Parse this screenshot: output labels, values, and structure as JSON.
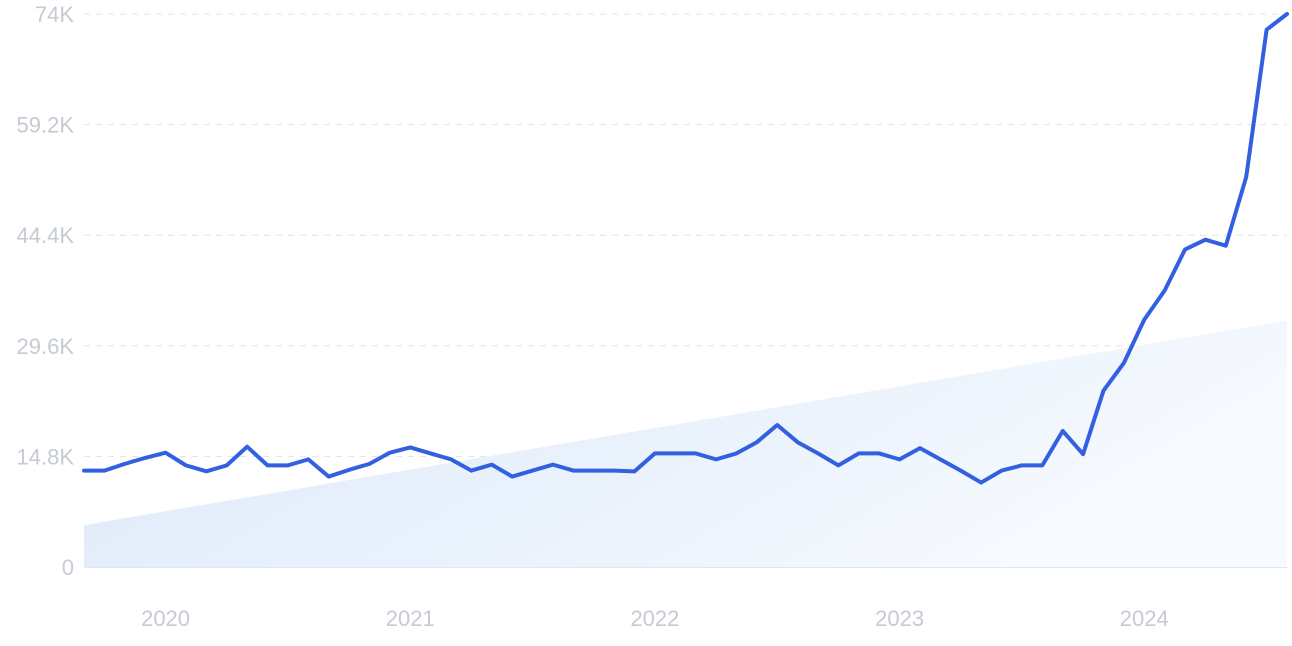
{
  "chart_data": {
    "type": "line",
    "title": "",
    "xlabel": "",
    "ylabel": "",
    "ylim": [
      0,
      74000
    ],
    "y_ticks": [
      {
        "value": 0,
        "label": "0"
      },
      {
        "value": 14800,
        "label": "14.8K"
      },
      {
        "value": 29600,
        "label": "29.6K"
      },
      {
        "value": 44400,
        "label": "44.4K"
      },
      {
        "value": 59200,
        "label": "59.2K"
      },
      {
        "value": 74000,
        "label": "74K"
      }
    ],
    "x_ticks": [
      "2020",
      "2021",
      "2022",
      "2023",
      "2024"
    ],
    "grid": "horizontal dashed",
    "x": [
      "2019-09",
      "2019-10",
      "2019-11",
      "2019-12",
      "2020-01",
      "2020-02",
      "2020-03",
      "2020-04",
      "2020-05",
      "2020-06",
      "2020-07",
      "2020-08",
      "2020-09",
      "2020-10",
      "2020-11",
      "2020-12",
      "2021-01",
      "2021-02",
      "2021-03",
      "2021-04",
      "2021-05",
      "2021-06",
      "2021-07",
      "2021-08",
      "2021-09",
      "2021-10",
      "2021-11",
      "2021-12",
      "2022-01",
      "2022-02",
      "2022-03",
      "2022-04",
      "2022-05",
      "2022-06",
      "2022-07",
      "2022-08",
      "2022-09",
      "2022-10",
      "2022-11",
      "2022-12",
      "2023-01",
      "2023-02",
      "2023-03",
      "2023-04",
      "2023-05",
      "2023-06",
      "2023-07",
      "2023-08",
      "2023-09",
      "2023-10",
      "2023-11",
      "2023-12",
      "2024-01",
      "2024-02",
      "2024-03",
      "2024-04",
      "2024-05",
      "2024-06",
      "2024-07",
      "2024-08"
    ],
    "series": [
      {
        "color": "#3360e0",
        "values": [
          12900,
          12900,
          13800,
          14600,
          15300,
          13600,
          12800,
          13600,
          16100,
          13600,
          13600,
          14400,
          12100,
          13000,
          13800,
          15300,
          16000,
          15200,
          14400,
          12900,
          13700,
          12100,
          12900,
          13700,
          12900,
          12900,
          12900,
          12800,
          15200,
          15200,
          15200,
          14400,
          15200,
          16700,
          19000,
          16700,
          15200,
          13600,
          15200,
          15200,
          14400,
          15900,
          14400,
          12900,
          11300,
          12900,
          13600,
          13600,
          18200,
          15100,
          23600,
          27300,
          33100,
          37000,
          42500,
          43800,
          43000,
          52200,
          71900,
          74000
        ]
      }
    ],
    "trend": {
      "color": "#dceaf9",
      "start_value": 5600,
      "end_value": 33000
    }
  }
}
